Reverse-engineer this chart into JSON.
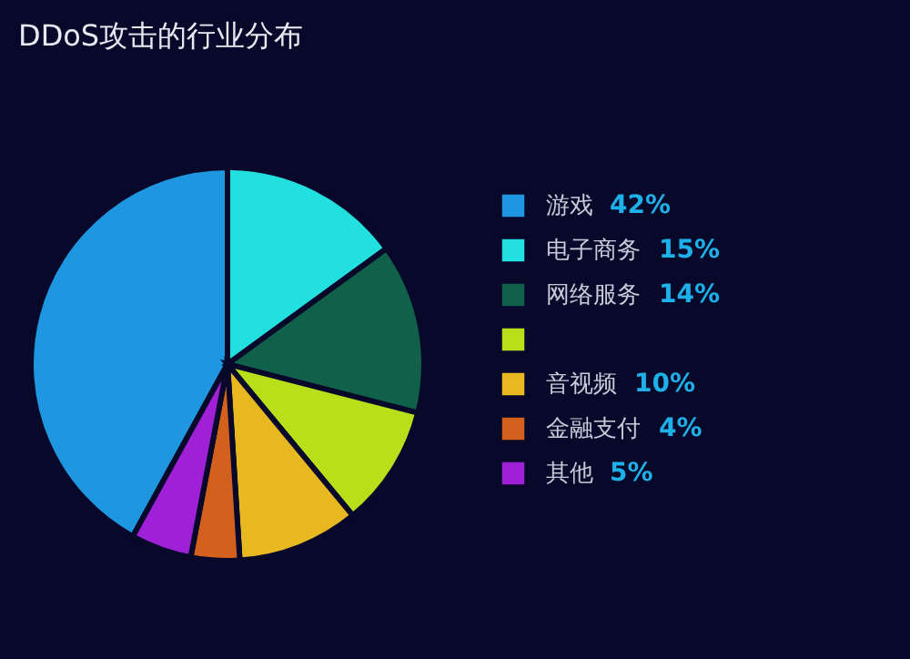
{
  "chart_data": {
    "type": "pie",
    "title": "DDoS攻击的行业分布",
    "categories": [
      "游戏",
      "电子商务",
      "网络服务",
      null,
      "音视频",
      "金融支付",
      "其他"
    ],
    "values": [
      42,
      15,
      14,
      10,
      10,
      4,
      5
    ],
    "value_labels": [
      "42%",
      "15%",
      "14%",
      null,
      "10%",
      "4%",
      "5%"
    ],
    "colors": [
      "#1e96e0",
      "#22e0e0",
      "#10604a",
      "#b8e01a",
      "#e8b820",
      "#d4601e",
      "#a020d8"
    ],
    "legend": "right"
  }
}
